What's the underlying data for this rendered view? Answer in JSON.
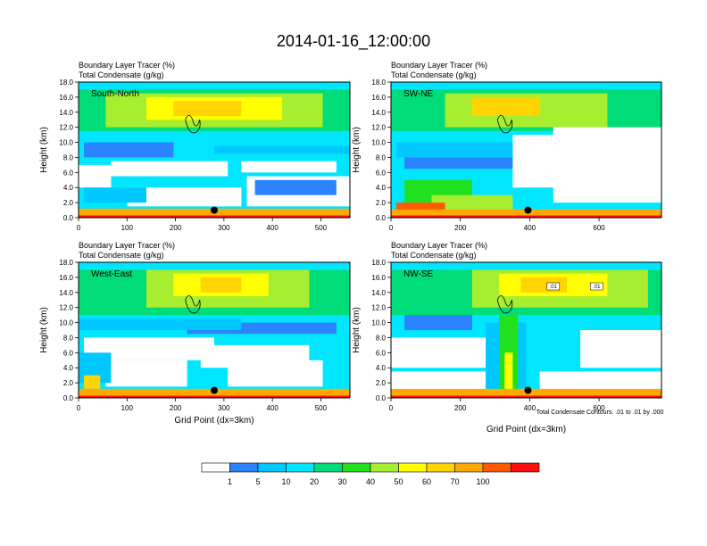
{
  "figure": {
    "title": "2014-01-16_12:00:00",
    "footnote": "Total Condensate Contours: .01 to .01 by .000"
  },
  "colorbar": {
    "labels": [
      "1",
      "5",
      "10",
      "20",
      "30",
      "40",
      "50",
      "60",
      "70",
      "100"
    ],
    "colors": [
      "#ffffff",
      "#2b83ff",
      "#00c8ff",
      "#00e6ff",
      "#00dc78",
      "#20e020",
      "#a8ee30",
      "#ffff00",
      "#ffd400",
      "#ffa800",
      "#ff5a00",
      "#ff1010"
    ]
  },
  "chart_data": [
    {
      "type": "heatmap",
      "panel": "South-North",
      "label_top": "Boundary Layer Tracer   (%)",
      "label_sub": "Total Condensate   (g/kg)",
      "ylabel": "Height (km)",
      "xlabel": "",
      "xlim": [
        0,
        560
      ],
      "ylim": [
        0,
        18
      ],
      "xticks": [
        "0",
        "100",
        "200",
        "300",
        "400",
        "500"
      ],
      "yticks": [
        "0.0",
        "2.0",
        "4.0",
        "6.0",
        "8.0",
        "10.0",
        "12.0",
        "14.0",
        "16.0",
        "18.0"
      ],
      "marker_x": 280,
      "marker_y": 1.0
    },
    {
      "type": "heatmap",
      "panel": "SW-NE",
      "label_top": "Boundary Layer Tracer   (%)",
      "label_sub": "Total Condensate   (g/kg)",
      "ylabel": "Height (km)",
      "xlabel": "",
      "xlim": [
        0,
        780
      ],
      "ylim": [
        0,
        18
      ],
      "xticks": [
        "0",
        "200",
        "400",
        "600"
      ],
      "yticks": [
        "0.0",
        "2.0",
        "4.0",
        "6.0",
        "8.0",
        "10.0",
        "12.0",
        "14.0",
        "16.0",
        "18.0"
      ],
      "marker_x": 395,
      "marker_y": 1.0
    },
    {
      "type": "heatmap",
      "panel": "West-East",
      "label_top": "Boundary Layer Tracer   (%)",
      "label_sub": "Total Condensate   (g/kg)",
      "ylabel": "Height (km)",
      "xlabel": "Grid Point (dx=3km)",
      "xlim": [
        0,
        560
      ],
      "ylim": [
        0,
        18
      ],
      "xticks": [
        "0",
        "100",
        "200",
        "300",
        "400",
        "500"
      ],
      "yticks": [
        "0.0",
        "2.0",
        "4.0",
        "6.0",
        "8.0",
        "10.0",
        "12.0",
        "14.0",
        "16.0",
        "18.0"
      ],
      "marker_x": 280,
      "marker_y": 1.0
    },
    {
      "type": "heatmap",
      "panel": "NW-SE",
      "label_top": "Boundary Layer Tracer   (%)",
      "label_sub": "Total Condensate   (g/kg)",
      "ylabel": "Height (km)",
      "xlabel": "Grid Point (dx=3km)",
      "xlim": [
        0,
        780
      ],
      "ylim": [
        0,
        18
      ],
      "xticks": [
        "0",
        "200",
        "400",
        "600"
      ],
      "yticks": [
        "0.0",
        "2.0",
        "4.0",
        "6.0",
        "8.0",
        "10.0",
        "12.0",
        "14.0",
        "16.0",
        "18.0"
      ],
      "marker_x": 395,
      "marker_y": 1.0,
      "contour_labels": [
        ".01",
        ".01"
      ]
    }
  ]
}
